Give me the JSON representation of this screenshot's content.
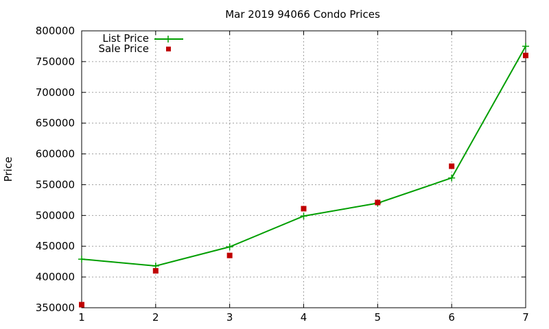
{
  "chart_data": {
    "type": "line",
    "title": "Mar 2019 94066 Condo Prices",
    "xlabel": "",
    "ylabel": "Price",
    "x": [
      1,
      2,
      3,
      4,
      5,
      6,
      7
    ],
    "xlim": [
      1,
      7
    ],
    "ylim": [
      350000,
      800000
    ],
    "xticks": [
      "1",
      "2",
      "3",
      "4",
      "5",
      "6",
      "7"
    ],
    "yticks": [
      "350000",
      "400000",
      "450000",
      "500000",
      "550000",
      "600000",
      "650000",
      "700000",
      "750000",
      "800000"
    ],
    "grid": true,
    "legend_position": "top-left",
    "series": [
      {
        "name": "List Price",
        "style": "line-with-plus-markers",
        "color": "#009e00",
        "values": [
          429000,
          418000,
          449000,
          499000,
          520000,
          561000,
          775000
        ]
      },
      {
        "name": "Sale Price",
        "style": "square-markers",
        "color": "#c00000",
        "values": [
          355000,
          410000,
          435000,
          511000,
          521000,
          580000,
          760000
        ]
      }
    ]
  }
}
